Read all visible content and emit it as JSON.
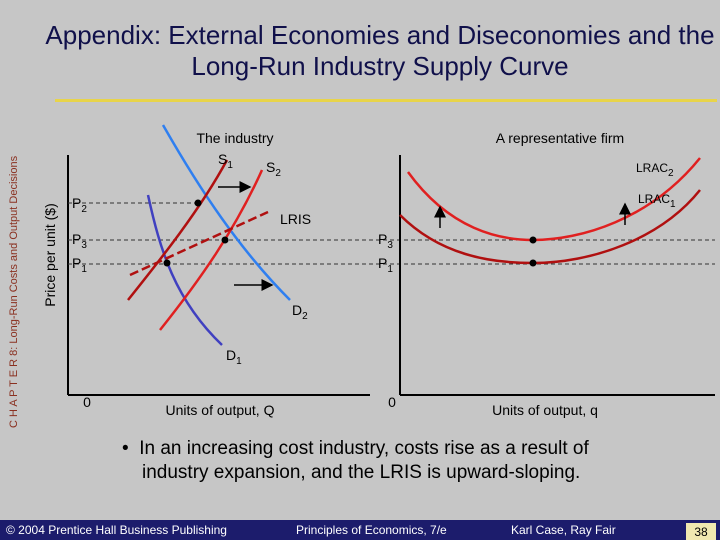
{
  "sidebar": "C H A P T E R 8: Long-Run Costs and Output Decisions",
  "header": {
    "title": "Appendix: External Economies and Diseconomies and the Long-Run Industry Supply Curve"
  },
  "diagram": {
    "left": {
      "title": "The industry",
      "y_label": "Price per unit ($)",
      "labels": [
        {
          "base": "S",
          "sub": "1"
        },
        {
          "base": "S",
          "sub": "2"
        },
        "LRIS",
        {
          "base": "D",
          "sub": "2"
        },
        {
          "base": "D",
          "sub": "1"
        }
      ],
      "prices": [
        {
          "base": "P",
          "sub": "2"
        },
        {
          "base": "P",
          "sub": "3"
        },
        {
          "base": "P",
          "sub": "1"
        }
      ],
      "origin": "0",
      "x_label": "Units of output, Q"
    },
    "right": {
      "title": "A representative firm",
      "labels": [
        {
          "base": "LRAC",
          "sub": "2"
        },
        {
          "base": "LRAC",
          "sub": "1"
        }
      ],
      "prices": [
        {
          "base": "P",
          "sub": "3"
        },
        {
          "base": "P",
          "sub": "1"
        }
      ],
      "origin": "0",
      "x_label": "Units of output, q"
    }
  },
  "body": {
    "bullet": "In an increasing cost industry, costs rise as a result of industry expansion, and the LRIS is upward-sloping."
  },
  "footer": {
    "copyright": "© 2004 Prentice Hall Business Publishing",
    "book": "Principles of Economics, 7/e",
    "authors": "Karl Case, Ray Fair",
    "page": "38"
  }
}
